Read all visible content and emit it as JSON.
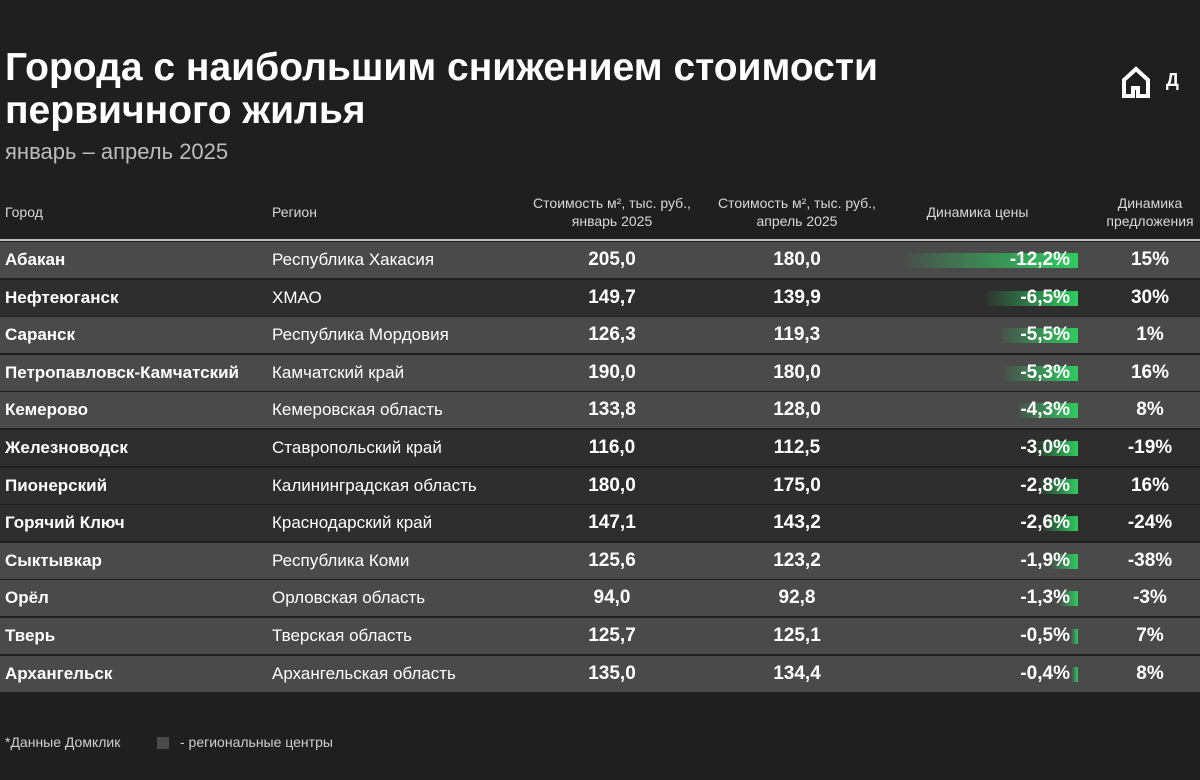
{
  "header": {
    "title": "Города с наибольшим снижением стоимости первичного жилья",
    "subtitle": "январь – апрель 2025",
    "logo": "Д"
  },
  "table": {
    "columns": [
      "Город",
      "Регион",
      "Стоимость м², тыс. руб., январь 2025",
      "Стоимость м², тыс. руб., апрель 2025",
      "Динамика цены",
      "Динамика предложения"
    ],
    "rows": [
      {
        "city": "Абакан",
        "region": "Республика Хакасия",
        "jan": "205,0",
        "apr": "180,0",
        "dynamics": {
          "value": -12.2,
          "label": "-12,2%"
        },
        "offer": "15%",
        "regional_center": true
      },
      {
        "city": "Нефтеюганск",
        "region": "ХМАО",
        "jan": "149,7",
        "apr": "139,9",
        "dynamics": {
          "value": -6.5,
          "label": "-6,5%"
        },
        "offer": "30%",
        "regional_center": false
      },
      {
        "city": "Саранск",
        "region": "Республика Мордовия",
        "jan": "126,3",
        "apr": "119,3",
        "dynamics": {
          "value": -5.5,
          "label": "-5,5%"
        },
        "offer": "1%",
        "regional_center": true
      },
      {
        "city": "Петропавловск-Камчатский",
        "region": "Камчатский край",
        "jan": "190,0",
        "apr": "180,0",
        "dynamics": {
          "value": -5.3,
          "label": "-5,3%"
        },
        "offer": "16%",
        "regional_center": true
      },
      {
        "city": "Кемерово",
        "region": "Кемеровская область",
        "jan": "133,8",
        "apr": "128,0",
        "dynamics": {
          "value": -4.3,
          "label": "-4,3%"
        },
        "offer": "8%",
        "regional_center": true
      },
      {
        "city": "Железноводск",
        "region": "Ставропольский край",
        "jan": "116,0",
        "apr": "112,5",
        "dynamics": {
          "value": -3.0,
          "label": "-3,0%"
        },
        "offer": "-19%",
        "regional_center": false
      },
      {
        "city": "Пионерский",
        "region": "Калининградская область",
        "jan": "180,0",
        "apr": "175,0",
        "dynamics": {
          "value": -2.8,
          "label": "-2,8%"
        },
        "offer": "16%",
        "regional_center": false
      },
      {
        "city": "Горячий Ключ",
        "region": "Краснодарский край",
        "jan": "147,1",
        "apr": "143,2",
        "dynamics": {
          "value": -2.6,
          "label": "-2,6%"
        },
        "offer": "-24%",
        "regional_center": false
      },
      {
        "city": "Сыктывкар",
        "region": "Республика Коми",
        "jan": "125,6",
        "apr": "123,2",
        "dynamics": {
          "value": -1.9,
          "label": "-1,9%"
        },
        "offer": "-38%",
        "regional_center": true
      },
      {
        "city": "Орёл",
        "region": "Орловская область",
        "jan": "94,0",
        "apr": "92,8",
        "dynamics": {
          "value": -1.3,
          "label": "-1,3%"
        },
        "offer": "-3%",
        "regional_center": true
      },
      {
        "city": "Тверь",
        "region": "Тверская область",
        "jan": "125,7",
        "apr": "125,1",
        "dynamics": {
          "value": -0.5,
          "label": "-0,5%"
        },
        "offer": "7%",
        "regional_center": true
      },
      {
        "city": "Архангельск",
        "region": "Архангельская область",
        "jan": "135,0",
        "apr": "134,4",
        "dynamics": {
          "value": -0.4,
          "label": "-0,4%"
        },
        "offer": "8%",
        "regional_center": true
      }
    ]
  },
  "footer": {
    "source": "*Данные Домклик",
    "legend": "- региональные центры"
  }
}
